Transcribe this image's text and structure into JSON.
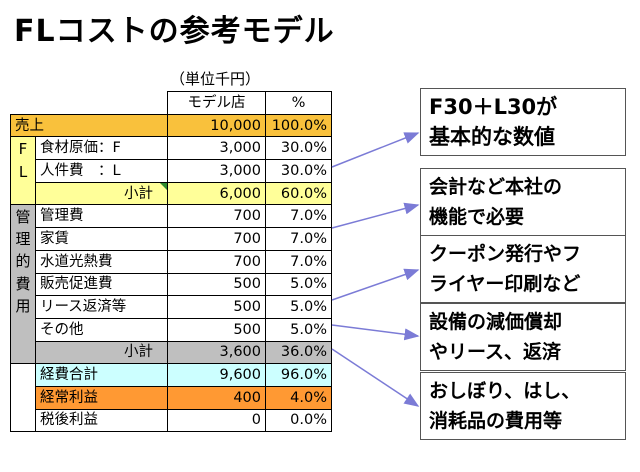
{
  "title": "FLコストの参考モデル",
  "unit_note": "（単位千円）",
  "headers": {
    "model": "モデル店",
    "percent": "%"
  },
  "sales": {
    "label": "売上",
    "value": "10,000",
    "percent": "100.0%"
  },
  "fl_side": [
    "F",
    "L"
  ],
  "fl_rows": [
    {
      "label": "食材原価：F",
      "value": "3,000",
      "percent": "30.0%"
    },
    {
      "label": "人件費　：L",
      "value": "3,000",
      "percent": "30.0%"
    }
  ],
  "fl_subtotal": {
    "label": "小計",
    "value": "6,000",
    "percent": "60.0%"
  },
  "mgmt_side": [
    "管",
    "理",
    "的",
    "費",
    "用"
  ],
  "mgmt_rows": [
    {
      "label": "管理費",
      "value": "700",
      "percent": "7.0%"
    },
    {
      "label": "家賃",
      "value": "700",
      "percent": "7.0%"
    },
    {
      "label": "水道光熱費",
      "value": "700",
      "percent": "7.0%"
    },
    {
      "label": "販売促進費",
      "value": "500",
      "percent": "5.0%"
    },
    {
      "label": "リース返済等",
      "value": "500",
      "percent": "5.0%"
    },
    {
      "label": "その他",
      "value": "500",
      "percent": "5.0%"
    }
  ],
  "mgmt_subtotal": {
    "label": "小計",
    "value": "3,600",
    "percent": "36.0%"
  },
  "totals": [
    {
      "label": "経費合計",
      "value": "9,600",
      "percent": "96.0%"
    },
    {
      "label": "経常利益",
      "value": "400",
      "percent": "4.0%"
    },
    {
      "label": "税後利益",
      "value": "0",
      "percent": "0.0%"
    }
  ],
  "callouts": [
    {
      "line1": "F30＋L30が",
      "line2": "基本的な数値"
    },
    {
      "line1": "会計など本社の",
      "line2": "機能で必要"
    },
    {
      "line1": "クーポン発行やフ",
      "line2": "ライヤー印刷など"
    },
    {
      "line1": "設備の減価償却",
      "line2": "やリース、返済"
    },
    {
      "line1": "おしぼり、はし、",
      "line2": "消耗品の費用等"
    }
  ],
  "colors": {
    "sales_bg": "#f9c13c",
    "fl_bg": "#ffff99",
    "side_bg": "#bfbfbf",
    "mgmt_subtotal_bg": "#bfbfbf",
    "total_bg": "#ccffff",
    "profit_bg": "#ff9933",
    "arrow": "#7b7bd6"
  }
}
